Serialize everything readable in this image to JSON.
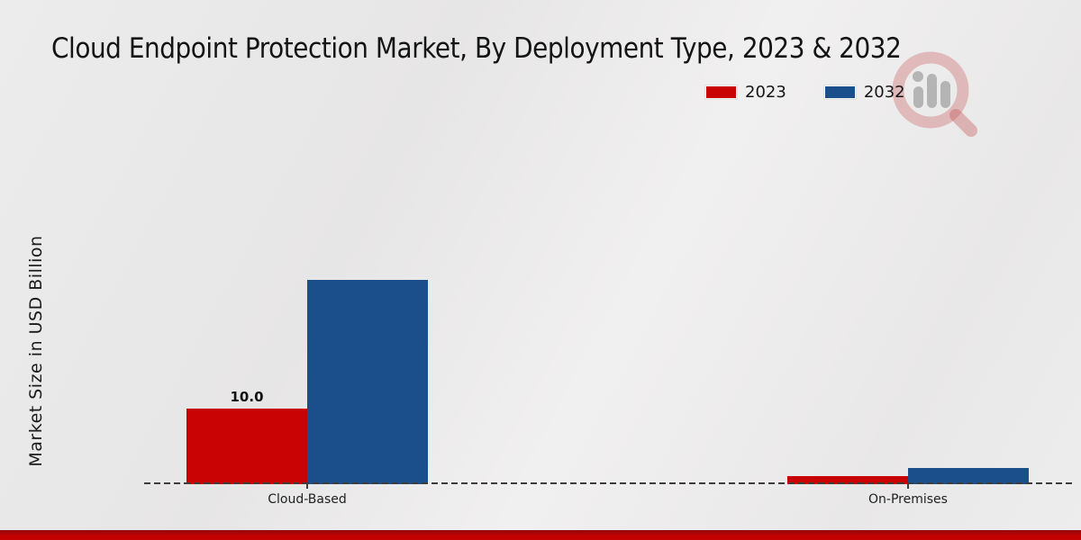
{
  "title": "Cloud Endpoint Protection Market, By Deployment Type, 2023 & 2032",
  "chart_data": {
    "type": "bar",
    "title": "Cloud Endpoint Protection Market, By Deployment Type, 2023 & 2032",
    "xlabel": "",
    "ylabel": "Market Size in USD Billion",
    "categories": [
      "Cloud-Based",
      "On-Premises"
    ],
    "series": [
      {
        "name": "2023",
        "color": "#c90303",
        "values": [
          10.0,
          1.1
        ]
      },
      {
        "name": "2032",
        "color": "#1a4f8c",
        "values": [
          27.0,
          2.1
        ]
      }
    ],
    "value_labels": [
      {
        "series": "2023",
        "category": "Cloud-Based",
        "text": "10.0"
      }
    ],
    "ylim": [
      0,
      46.2
    ],
    "grid": false,
    "legend_position": "top-right",
    "baseline_style": "dashed-zero-line"
  },
  "watermark_icon": "magnifier-with-bars-logo",
  "footer_bar_colors": [
    "#8e0b0b",
    "#c40101"
  ]
}
